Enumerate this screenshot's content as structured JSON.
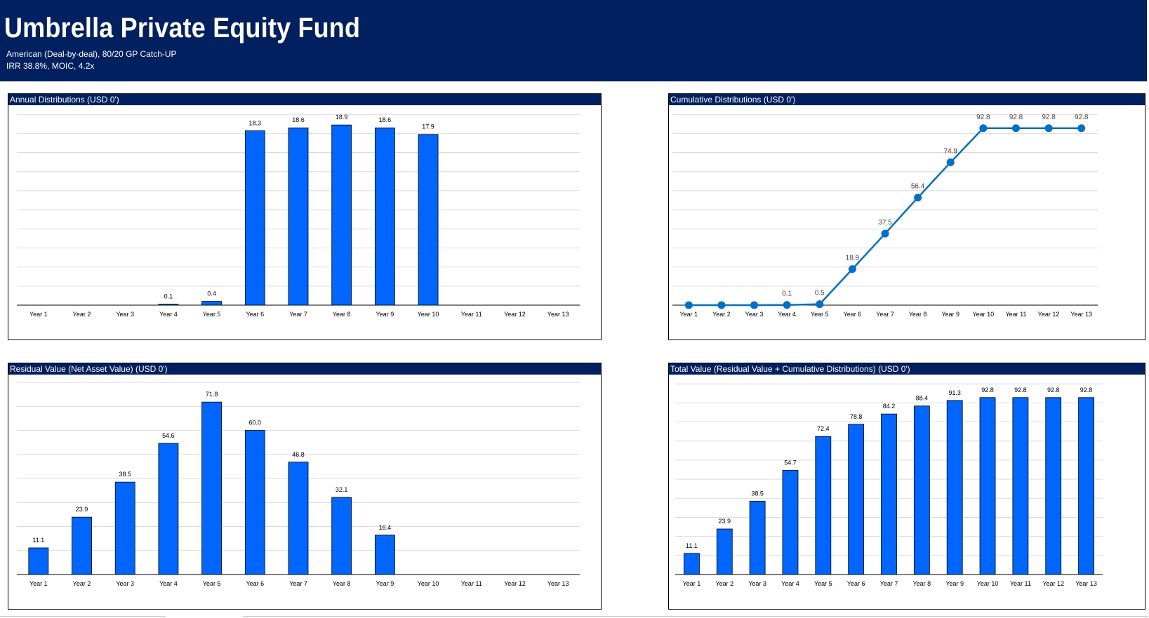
{
  "header": {
    "title": "Umbrella Private Equity Fund",
    "subtitle1": "American (Deal-by-deal), 80/20 GP Catch-UP",
    "subtitle2": "IRR 38.8%, MOIC, 4.2x"
  },
  "colors": {
    "navy": "#002060",
    "bar": "#0066ff",
    "line": "#0070d0",
    "grid": "#d9d9d9"
  },
  "chart_data": [
    {
      "id": "annual",
      "type": "bar",
      "title": "Annual Distributions (USD 0')",
      "categories": [
        "Year 1",
        "Year 2",
        "Year 3",
        "Year 4",
        "Year 5",
        "Year 6",
        "Year 7",
        "Year 8",
        "Year 9",
        "Year 10",
        "Year 11",
        "Year 12",
        "Year 13"
      ],
      "values": [
        0,
        0,
        0,
        0.1,
        0.4,
        18.3,
        18.6,
        18.9,
        18.6,
        17.9,
        0,
        0,
        0
      ],
      "labels": [
        "",
        "",
        "",
        "0.1",
        "0.4",
        "18.3",
        "18.6",
        "18.9",
        "18.6",
        "17.9",
        "",
        "",
        ""
      ],
      "ylim": [
        0,
        20
      ],
      "grid": true
    },
    {
      "id": "cumulative",
      "type": "line",
      "title": "Cumulative  Distributions  (USD 0')",
      "categories": [
        "Year 1",
        "Year 2",
        "Year 3",
        "Year 4",
        "Year 5",
        "Year 6",
        "Year 7",
        "Year 8",
        "Year 9",
        "Year 10",
        "Year 11",
        "Year 12",
        "Year 13"
      ],
      "values": [
        0,
        0,
        0,
        0.1,
        0.5,
        18.9,
        37.5,
        56.4,
        74.9,
        92.8,
        92.8,
        92.8,
        92.8
      ],
      "labels": [
        "",
        "",
        "",
        "0.1",
        "0.5",
        "18.9",
        "37.5",
        "56.4",
        "74.9",
        "92.8",
        "92.8",
        "92.8",
        "92.8"
      ],
      "ylim": [
        0,
        100
      ],
      "grid": true
    },
    {
      "id": "residual",
      "type": "bar",
      "title": "Residual Value (Net Asset Value)  (USD 0')",
      "categories": [
        "Year 1",
        "Year 2",
        "Year 3",
        "Year 4",
        "Year 5",
        "Year 6",
        "Year 7",
        "Year 8",
        "Year 9",
        "Year 10",
        "Year 11",
        "Year 12",
        "Year 13"
      ],
      "values": [
        11.1,
        23.9,
        38.5,
        54.6,
        71.8,
        60.0,
        46.8,
        32.1,
        16.4,
        0,
        0,
        0,
        0
      ],
      "labels": [
        "11.1",
        "23.9",
        "38.5",
        "54.6",
        "71.8",
        "60.0",
        "46.8",
        "32.1",
        "16.4",
        "",
        "",
        "",
        ""
      ],
      "ylim": [
        0,
        80
      ],
      "grid": true
    },
    {
      "id": "total",
      "type": "bar",
      "title": "Total Value (Residual Value + Cumulative Distributions)  (USD 0')",
      "categories": [
        "Year 1",
        "Year 2",
        "Year 3",
        "Year 4",
        "Year 5",
        "Year 6",
        "Year 7",
        "Year 8",
        "Year 9",
        "Year 10",
        "Year 11",
        "Year 12",
        "Year 13"
      ],
      "values": [
        11.1,
        23.9,
        38.5,
        54.7,
        72.4,
        78.8,
        84.2,
        88.4,
        91.3,
        92.8,
        92.8,
        92.8,
        92.8
      ],
      "labels": [
        "11.1",
        "23.9",
        "38.5",
        "54.7",
        "72.4",
        "78.8",
        "84.2",
        "88.4",
        "91.3",
        "92.8",
        "92.8",
        "92.8",
        "92.8"
      ],
      "ylim": [
        0,
        100
      ],
      "grid": true
    }
  ]
}
